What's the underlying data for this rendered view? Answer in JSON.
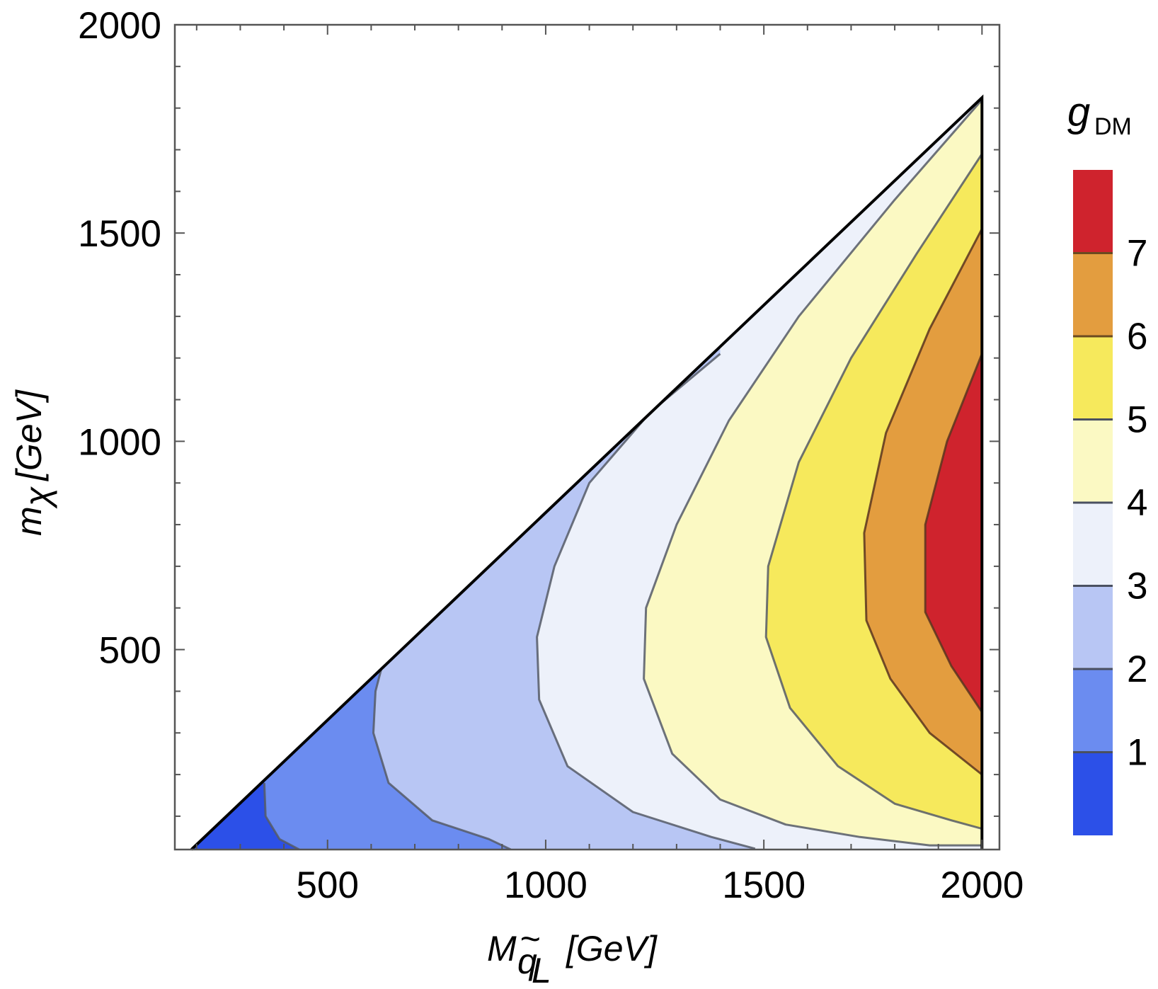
{
  "chart_data": {
    "type": "contour",
    "x_label": {
      "main": "M",
      "sub_top": "~",
      "sub_base": "q",
      "sub_sub": "L",
      "unit": "[GeV]"
    },
    "y_label": {
      "main": "m",
      "sub": "χ",
      "unit": "[GeV]"
    },
    "xlim": [
      150,
      2040
    ],
    "ylim": [
      20,
      2000
    ],
    "x_ticks": [
      "500",
      "1000",
      "1500",
      "2000"
    ],
    "x_tick_values": [
      500,
      1000,
      1500,
      2000
    ],
    "y_ticks": [
      "500",
      "1000",
      "1500",
      "2000"
    ],
    "y_tick_values": [
      500,
      1000,
      1500,
      2000
    ],
    "region_boundary": {
      "diagonal": [
        [
          188,
          20
        ],
        [
          2000,
          1825
        ]
      ],
      "right_edge_x": 2000
    },
    "levels": [
      0,
      1,
      2,
      3,
      4,
      5,
      6,
      7,
      8
    ],
    "level_colors": [
      "#2c50e8",
      "#6b8cf0",
      "#b8c6f4",
      "#edf1fa",
      "#fbf9c3",
      "#f6e95c",
      "#e39d3f",
      "#cf232d"
    ],
    "contours": [
      {
        "level": 1,
        "points": [
          [
            355,
            180
          ],
          [
            358,
            100
          ],
          [
            390,
            45
          ],
          [
            435,
            20
          ]
        ]
      },
      {
        "level": 2,
        "points": [
          [
            800,
            637
          ],
          [
            700,
            600
          ],
          [
            640,
            520
          ],
          [
            610,
            400
          ],
          [
            605,
            300
          ],
          [
            640,
            180
          ],
          [
            740,
            90
          ],
          [
            870,
            45
          ],
          [
            920,
            20
          ]
        ]
      },
      {
        "level": 3,
        "points": [
          [
            1400,
            1210
          ],
          [
            1240,
            1070
          ],
          [
            1100,
            900
          ],
          [
            1020,
            700
          ],
          [
            980,
            530
          ],
          [
            985,
            380
          ],
          [
            1050,
            220
          ],
          [
            1200,
            110
          ],
          [
            1380,
            50
          ],
          [
            1480,
            22
          ]
        ]
      },
      {
        "level": 4,
        "points": [
          [
            2000,
            1820
          ],
          [
            1800,
            1580
          ],
          [
            1580,
            1300
          ],
          [
            1420,
            1050
          ],
          [
            1300,
            800
          ],
          [
            1230,
            600
          ],
          [
            1225,
            430
          ],
          [
            1290,
            250
          ],
          [
            1400,
            140
          ],
          [
            1550,
            80
          ],
          [
            1720,
            50
          ],
          [
            1880,
            30
          ],
          [
            2000,
            30
          ]
        ]
      },
      {
        "level": 5,
        "points": [
          [
            2000,
            1690
          ],
          [
            1850,
            1450
          ],
          [
            1700,
            1200
          ],
          [
            1580,
            950
          ],
          [
            1510,
            700
          ],
          [
            1505,
            530
          ],
          [
            1560,
            360
          ],
          [
            1670,
            220
          ],
          [
            1800,
            130
          ],
          [
            1930,
            90
          ],
          [
            2000,
            70
          ]
        ]
      },
      {
        "level": 6,
        "points": [
          [
            2000,
            1510
          ],
          [
            1880,
            1270
          ],
          [
            1780,
            1020
          ],
          [
            1730,
            780
          ],
          [
            1735,
            570
          ],
          [
            1790,
            430
          ],
          [
            1880,
            300
          ],
          [
            2000,
            200
          ]
        ]
      },
      {
        "level": 7,
        "points": [
          [
            2000,
            1210
          ],
          [
            1920,
            1000
          ],
          [
            1870,
            800
          ],
          [
            1870,
            590
          ],
          [
            1930,
            460
          ],
          [
            2000,
            350
          ]
        ]
      }
    ],
    "colorbar": {
      "title_main": "g",
      "title_sub": "DM",
      "tick_labels": [
        "1",
        "2",
        "3",
        "4",
        "5",
        "6",
        "7"
      ],
      "tick_values": [
        1,
        2,
        3,
        4,
        5,
        6,
        7
      ],
      "range": [
        0,
        8
      ]
    }
  }
}
